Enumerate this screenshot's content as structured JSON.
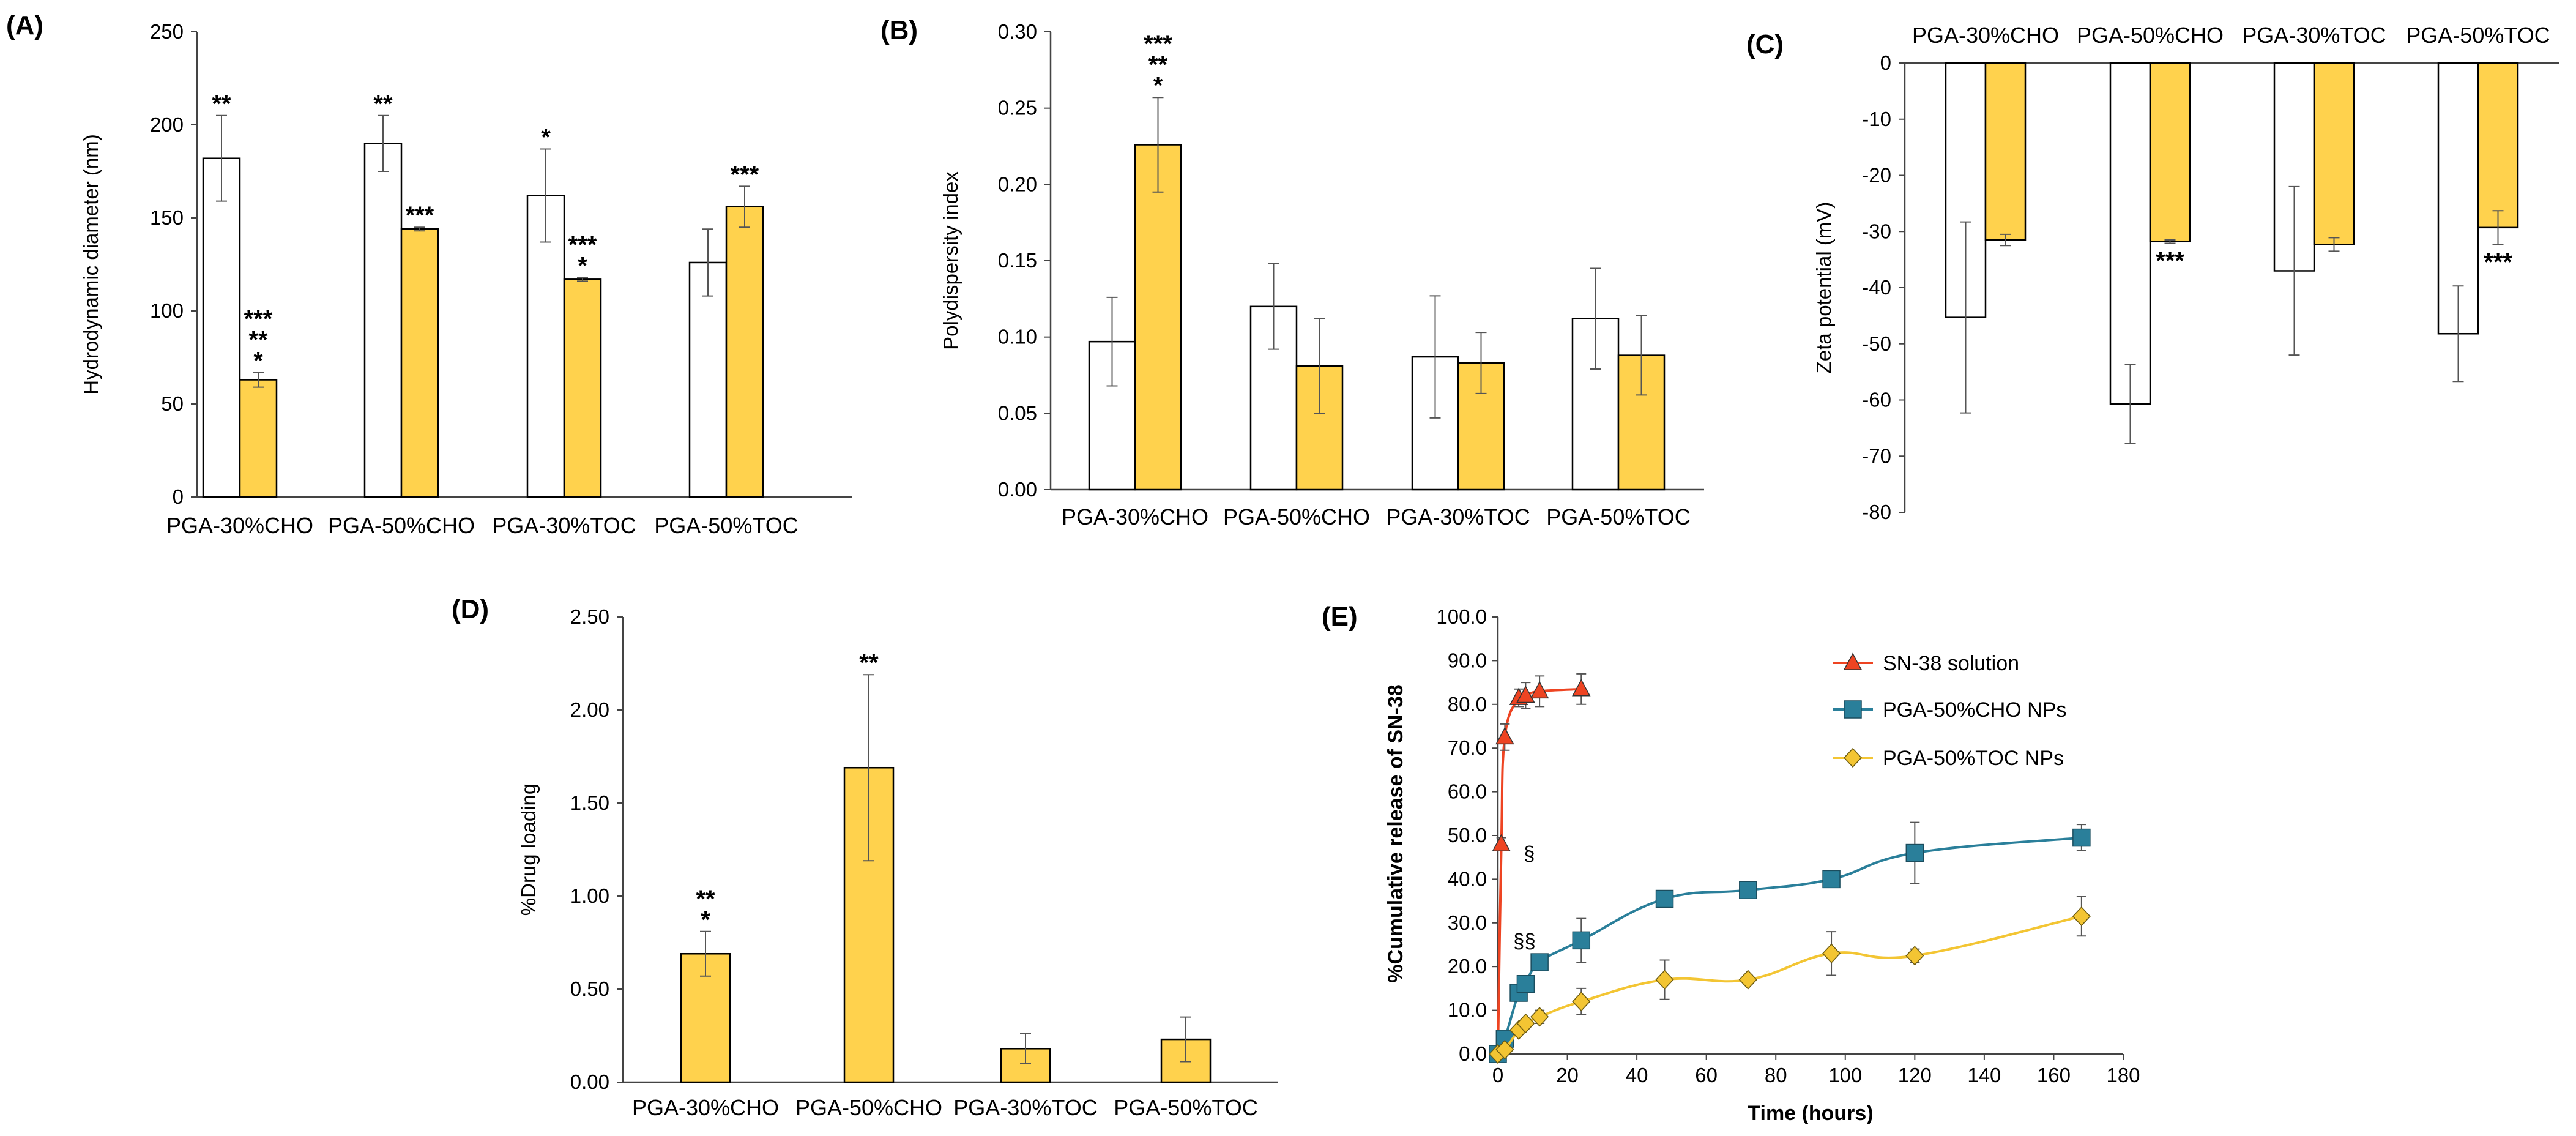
{
  "colors": {
    "white_bar": "#ffffff",
    "yellow_bar": "#ffd24d",
    "outline": "#000000",
    "err": "#555555",
    "sn38": "#ee4422",
    "cho": "#2a7f9a",
    "toc": "#f3c533"
  },
  "chart_data": [
    {
      "id": "A",
      "type": "bar",
      "label": "(A)",
      "ylabel": "Hydrodynamic diameter (nm)",
      "ylim": [
        0,
        250
      ],
      "yticks": [
        "0",
        "50",
        "100",
        "150",
        "200",
        "250"
      ],
      "categories": [
        "PGA-30%CHO",
        "PGA-50%CHO",
        "PGA-30%TOC",
        "PGA-50%TOC"
      ],
      "series": [
        {
          "name": "white",
          "values": [
            182,
            190,
            162,
            126
          ],
          "errors": [
            23,
            15,
            25,
            18
          ]
        },
        {
          "name": "yellow",
          "values": [
            63,
            144,
            117,
            156
          ],
          "errors": [
            4,
            1,
            1,
            11
          ]
        }
      ],
      "annotations": [
        {
          "cat": 0,
          "s": 0,
          "lines": [
            "**"
          ]
        },
        {
          "cat": 0,
          "s": 1,
          "lines": [
            "***",
            "**",
            "*"
          ]
        },
        {
          "cat": 1,
          "s": 0,
          "lines": [
            "**"
          ]
        },
        {
          "cat": 1,
          "s": 1,
          "lines": [
            "***"
          ]
        },
        {
          "cat": 2,
          "s": 0,
          "lines": [
            "*"
          ]
        },
        {
          "cat": 2,
          "s": 1,
          "lines": [
            "***",
            "*"
          ]
        },
        {
          "cat": 3,
          "s": 1,
          "lines": [
            "***"
          ]
        }
      ]
    },
    {
      "id": "B",
      "type": "bar",
      "label": "(B)",
      "ylabel": "Polydispersity index",
      "ylim": [
        0,
        0.3
      ],
      "yticks": [
        "0.00",
        "0.05",
        "0.10",
        "0.15",
        "0.20",
        "0.25",
        "0.30"
      ],
      "categories": [
        "PGA-30%CHO",
        "PGA-50%CHO",
        "PGA-30%TOC",
        "PGA-50%TOC"
      ],
      "series": [
        {
          "name": "white",
          "values": [
            0.097,
            0.12,
            0.087,
            0.112
          ],
          "errors": [
            0.029,
            0.028,
            0.04,
            0.033
          ]
        },
        {
          "name": "yellow",
          "values": [
            0.226,
            0.081,
            0.083,
            0.088
          ],
          "errors": [
            0.031,
            0.031,
            0.02,
            0.026
          ]
        }
      ],
      "annotations": [
        {
          "cat": 0,
          "s": 1,
          "lines": [
            "***",
            "**",
            "*"
          ]
        }
      ]
    },
    {
      "id": "C",
      "type": "bar",
      "label": "(C)",
      "ylabel": "Zeta potential (mV)",
      "ylim": [
        -80,
        0
      ],
      "yticks": [
        "0",
        "-10",
        "-20",
        "-30",
        "-40",
        "-50",
        "-60",
        "-70",
        "-80"
      ],
      "categories": [
        "PGA-30%CHO",
        "PGA-50%CHO",
        "PGA-30%TOC",
        "PGA-50%TOC"
      ],
      "series": [
        {
          "name": "white",
          "values": [
            -45.3,
            -60.7,
            -37,
            -48.2
          ],
          "errors": [
            17,
            7,
            15,
            8.5
          ]
        },
        {
          "name": "yellow",
          "values": [
            -31.5,
            -31.8,
            -32.3,
            -29.3
          ],
          "errors": [
            1,
            0.3,
            1.2,
            3
          ]
        }
      ],
      "annotations": [
        {
          "cat": 1,
          "s": 1,
          "lines": [
            "***"
          ]
        },
        {
          "cat": 3,
          "s": 1,
          "lines": [
            "***"
          ]
        }
      ]
    },
    {
      "id": "D",
      "type": "bar",
      "label": "(D)",
      "ylabel": "%Drug loading",
      "ylim": [
        0,
        2.5
      ],
      "yticks": [
        "0.00",
        "0.50",
        "1.00",
        "1.50",
        "2.00",
        "2.50"
      ],
      "categories": [
        "PGA-30%CHO",
        "PGA-50%CHO",
        "PGA-30%TOC",
        "PGA-50%TOC"
      ],
      "series": [
        {
          "name": "yellow",
          "values": [
            0.69,
            1.69,
            0.18,
            0.23
          ],
          "errors": [
            0.12,
            0.5,
            0.08,
            0.12
          ]
        }
      ],
      "annotations": [
        {
          "cat": 0,
          "s": 0,
          "lines": [
            "**",
            "*"
          ]
        },
        {
          "cat": 1,
          "s": 0,
          "lines": [
            "**"
          ]
        }
      ]
    },
    {
      "id": "E",
      "type": "line",
      "label": "(E)",
      "ylabel": "%Cumulative release of SN-38",
      "xlabel": "Time (hours)",
      "xlim": [
        0,
        180
      ],
      "ylim": [
        0,
        100
      ],
      "xticks": [
        "0",
        "20",
        "40",
        "60",
        "80",
        "100",
        "120",
        "140",
        "160",
        "180"
      ],
      "yticks": [
        "0.0",
        "10.0",
        "20.0",
        "30.0",
        "40.0",
        "50.0",
        "60.0",
        "70.0",
        "80.0",
        "90.0",
        "100.0"
      ],
      "series": [
        {
          "name": "SN-38 solution",
          "marker": "triangle",
          "x": [
            0,
            1,
            2,
            6,
            8,
            12,
            24
          ],
          "y": [
            0,
            48,
            72.5,
            81.5,
            82,
            83,
            83.5
          ],
          "errors": [
            0,
            1.5,
            3,
            2,
            3,
            3.5,
            3.5
          ]
        },
        {
          "name": "PGA-50%CHO NPs",
          "marker": "square",
          "x": [
            0,
            2,
            6,
            8,
            12,
            24,
            48,
            72,
            96,
            120,
            168
          ],
          "y": [
            0,
            3.5,
            14,
            16,
            21,
            26,
            35.5,
            37.5,
            40,
            46,
            49.5
          ],
          "errors": [
            0,
            1,
            1,
            1.5,
            1.5,
            5,
            1,
            1,
            1.5,
            7,
            3
          ]
        },
        {
          "name": "PGA-50%TOC NPs",
          "marker": "diamond",
          "x": [
            0,
            2,
            6,
            8,
            12,
            24,
            48,
            72,
            96,
            120,
            168
          ],
          "y": [
            0,
            1,
            5.5,
            7,
            8.5,
            12,
            17,
            17,
            23,
            22.5,
            31.5
          ],
          "errors": [
            0,
            0.5,
            1,
            1,
            1.5,
            3,
            4.5,
            1,
            5,
            1.5,
            4.5
          ]
        }
      ],
      "annotations": [
        {
          "text": "§",
          "x": 6,
          "y": 46
        },
        {
          "text": "§§",
          "x": 3,
          "y": 26
        }
      ]
    }
  ]
}
